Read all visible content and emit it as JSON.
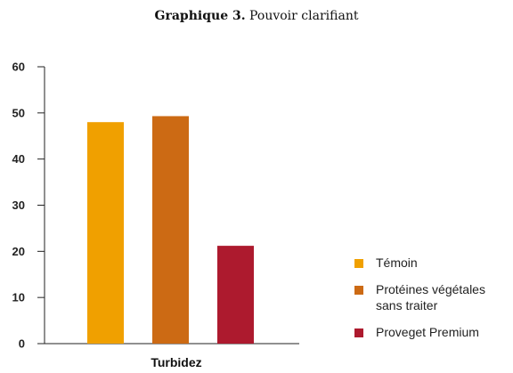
{
  "title": {
    "bold": "Graphique 3.",
    "rest": "Pouvoir clarifiant"
  },
  "chart_data": {
    "type": "bar",
    "categories": [
      "Turbidez"
    ],
    "xlabel": "Turbidez",
    "ylabel": "",
    "ylim": [
      0,
      60
    ],
    "yticks": [
      0,
      10,
      20,
      30,
      40,
      50,
      60
    ],
    "grid": false,
    "legend_position": "right",
    "series": [
      {
        "name": "Témoin",
        "values": [
          48
        ],
        "color": "#f0a000"
      },
      {
        "name": "Protéines végétales sans traiter",
        "values": [
          49.3
        ],
        "color": "#cc6a14"
      },
      {
        "name": "Proveget Premium",
        "values": [
          21.2
        ],
        "color": "#ad1a2e"
      }
    ]
  },
  "legend": {
    "items": [
      {
        "label": "Témoin",
        "color": "#f0a000"
      },
      {
        "label": "Protéines végétales sans traiter",
        "color": "#cc6a14"
      },
      {
        "label": "Proveget Premium",
        "color": "#ad1a2e"
      }
    ]
  }
}
